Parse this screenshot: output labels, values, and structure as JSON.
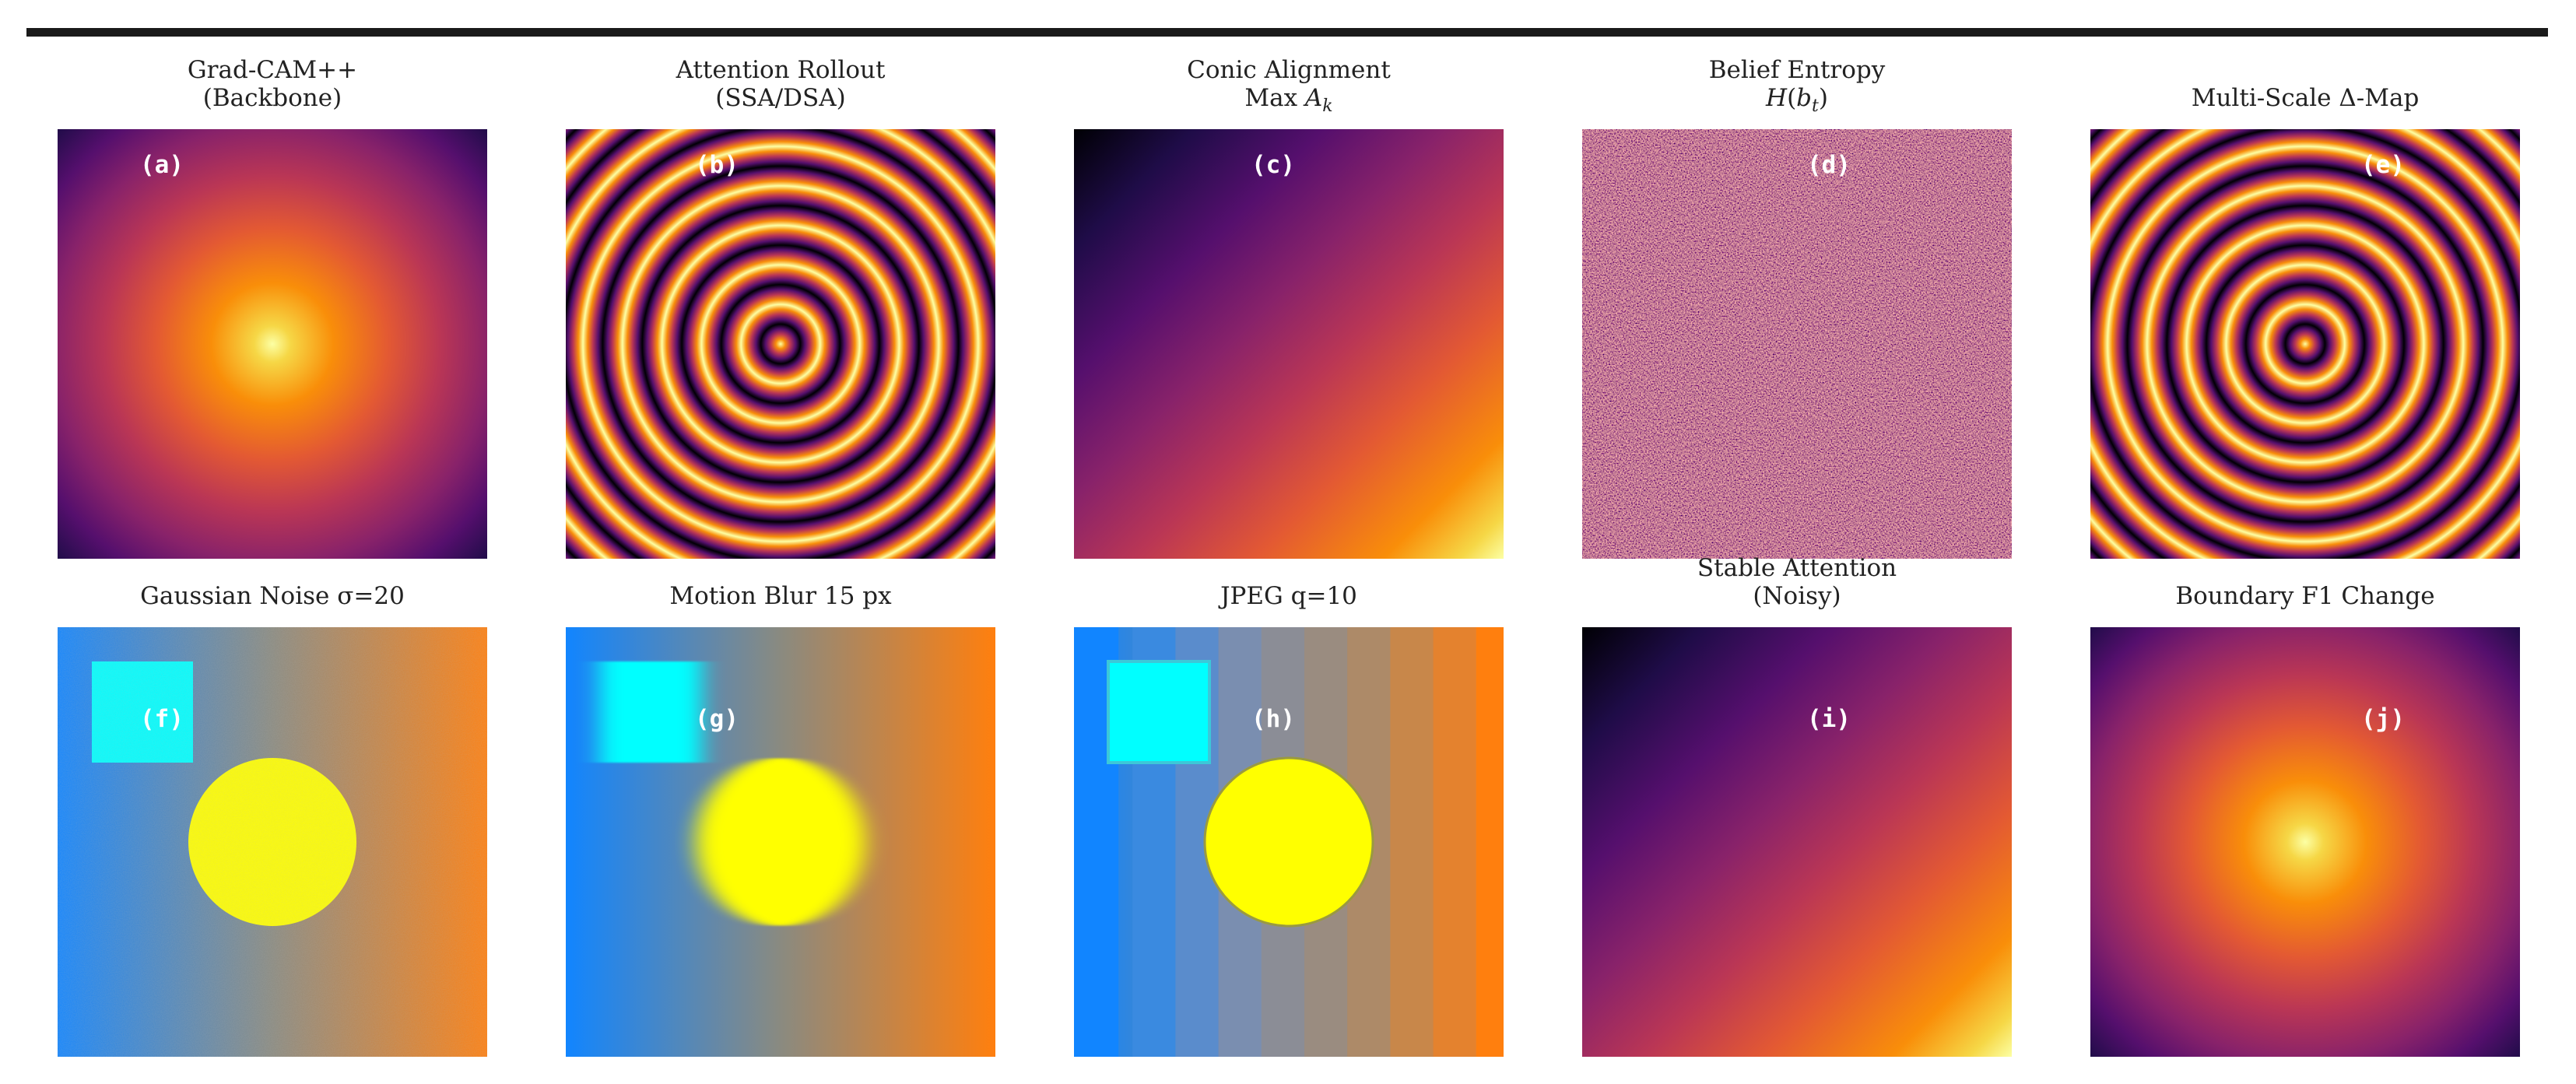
{
  "figure": {
    "rows": [
      [
        {
          "id": "a",
          "label": "(a)",
          "title_lines": [
            "Grad-CAM++",
            "(Backbone)"
          ],
          "content": "radial-glow"
        },
        {
          "id": "b",
          "label": "(b)",
          "title_lines": [
            "Attention Rollout",
            "(SSA/DSA)"
          ],
          "content": "concentric-rings"
        },
        {
          "id": "c",
          "label": "(c)",
          "title_lines": [
            "Conic Alignment",
            "Max A_k"
          ],
          "content": "diagonal-gradient"
        },
        {
          "id": "d",
          "label": "(d)",
          "title_lines": [
            "Belief Entropy",
            "H(b_t)"
          ],
          "content": "random-noise"
        },
        {
          "id": "e",
          "label": "(e)",
          "title_lines": [
            "Multi-Scale Δ-Map"
          ],
          "content": "concentric-rings"
        }
      ],
      [
        {
          "id": "f",
          "label": "(f)",
          "title_lines": [
            "Gaussian Noise σ=20"
          ],
          "content": "scene-noisy"
        },
        {
          "id": "g",
          "label": "(g)",
          "title_lines": [
            "Motion Blur 15 px"
          ],
          "content": "scene-blurred"
        },
        {
          "id": "h",
          "label": "(h)",
          "title_lines": [
            "JPEG q=10"
          ],
          "content": "scene-jpeg"
        },
        {
          "id": "i",
          "label": "(i)",
          "title_lines": [
            "Stable Attention",
            "(Noisy)"
          ],
          "content": "diagonal-gradient"
        },
        {
          "id": "j",
          "label": "(j)",
          "title_lines": [
            "Boundary F1 Change"
          ],
          "content": "radial-glow"
        }
      ]
    ],
    "colormap": "inferno",
    "colors": {
      "scene_blue": "#1185ff",
      "scene_orange": "#ff7f0e",
      "scene_cyan": "#00ffff",
      "scene_yellow": "#ffff00",
      "rule": "#1a1a1a"
    }
  }
}
